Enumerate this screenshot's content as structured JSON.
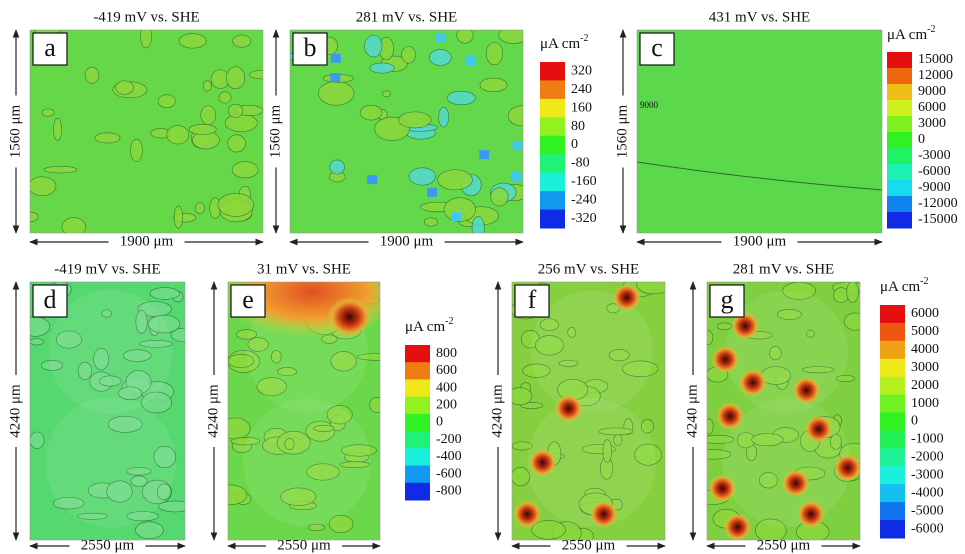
{
  "panels": [
    {
      "letter": "a",
      "title": "-419 mV vs. SHE",
      "ylabel": "1560 μm",
      "xlabel": "1900 μm"
    },
    {
      "letter": "b",
      "title": "281 mV vs. SHE",
      "ylabel": "1560 μm",
      "xlabel": "1900 μm"
    },
    {
      "letter": "c",
      "title": "431 mV vs. SHE",
      "ylabel": "1560 μm",
      "xlabel": "1900 μm",
      "annotation": "9000"
    },
    {
      "letter": "d",
      "title": "-419 mV vs. SHE",
      "ylabel": "4240 μm",
      "xlabel": "2550 μm"
    },
    {
      "letter": "e",
      "title": "31 mV vs. SHE",
      "ylabel": "4240 μm",
      "xlabel": "2550 μm"
    },
    {
      "letter": "f",
      "title": "256 mV vs. SHE",
      "ylabel": "4240 μm",
      "xlabel": "2550 μm"
    },
    {
      "letter": "g",
      "title": "281 mV vs. SHE",
      "ylabel": "4240 μm",
      "xlabel": "2550 μm"
    }
  ],
  "colorbars": [
    {
      "unit": "μA cm",
      "unit_exp": "-2",
      "labels": [
        320,
        240,
        160,
        80,
        0,
        -80,
        -160,
        -240,
        -320
      ]
    },
    {
      "unit": "μA cm",
      "unit_exp": "-2",
      "labels": [
        15000,
        12000,
        9000,
        6000,
        3000,
        0,
        -3000,
        -6000,
        -9000,
        -12000,
        -15000
      ]
    },
    {
      "unit": "μA cm",
      "unit_exp": "-2",
      "labels": [
        800,
        600,
        400,
        200,
        0,
        -200,
        -400,
        -600,
        -800
      ]
    },
    {
      "unit": "μA cm",
      "unit_exp": "-2",
      "labels": [
        6000,
        5000,
        4000,
        3000,
        2000,
        1000,
        0,
        -1000,
        -2000,
        -3000,
        -4000,
        -5000,
        -6000
      ]
    }
  ]
}
